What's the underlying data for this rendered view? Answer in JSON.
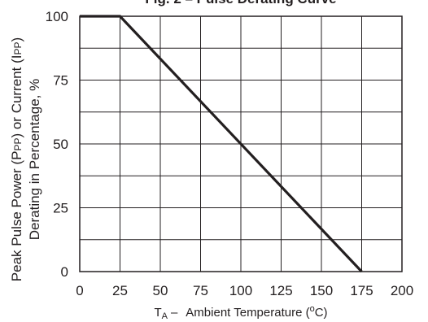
{
  "chart_data": {
    "type": "line",
    "title": "Fig. 2 – Pulse Derating Curve",
    "xlabel": "Tₐ –  Ambient Temperature (°C)",
    "xlabel_parts": {
      "symbol": "T",
      "subscript": "A",
      "dash": "–",
      "text": "Ambient Temperature (",
      "degree": "o",
      "unit": "C)"
    },
    "ylabel_lines": [
      "Peak Pulse Power (PPP) or Current (IPP)",
      "Derating in Percentage, %"
    ],
    "ylabel_parts": {
      "line1_a": "Peak Pulse Power (P",
      "line1_sub1": "PP",
      "line1_b": ") or Current (I",
      "line1_sub2": "PP",
      "line1_c": ")",
      "line2": "Derating in Percentage, %"
    },
    "x_ticks": [
      0,
      25,
      50,
      75,
      100,
      125,
      150,
      175,
      200
    ],
    "y_ticks": [
      0,
      25,
      50,
      75,
      100
    ],
    "xlim": [
      0,
      200
    ],
    "ylim": [
      0,
      100
    ],
    "grid": {
      "x_step": 25,
      "y_step": 12.5
    },
    "series": [
      {
        "x": [
          0,
          25,
          175
        ],
        "y": [
          100,
          100,
          0
        ]
      }
    ],
    "colors": {
      "line": "#231f20",
      "grid": "#231f20",
      "frame": "#231f20"
    }
  }
}
